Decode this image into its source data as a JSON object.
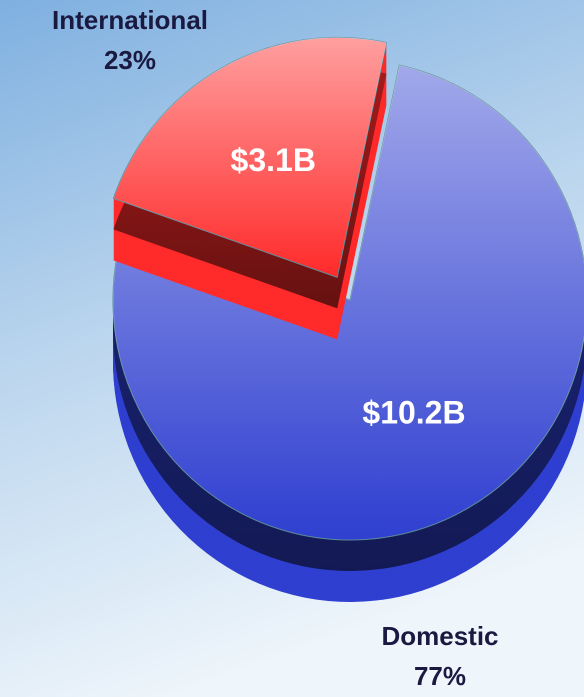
{
  "chart_data": {
    "type": "pie",
    "categories": [
      "International",
      "Domestic"
    ],
    "values": [
      23,
      77
    ],
    "value_labels": [
      "23%",
      "77%"
    ],
    "amounts": [
      3.1,
      10.2
    ],
    "amount_labels": [
      "$3.1B",
      "$10.2B"
    ],
    "colors": [
      "#ff2a2a",
      "#2f3fd0"
    ],
    "exploded": [
      true,
      false
    ]
  }
}
